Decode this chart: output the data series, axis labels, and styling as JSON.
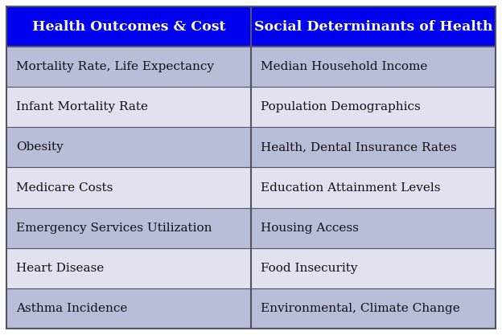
{
  "col1_header": "Health Outcomes & Cost",
  "col2_header": "Social Determinants of Health",
  "col1_items": [
    "Mortality Rate, Life Expectancy",
    "Infant Mortality Rate",
    "Obesity",
    "Medicare Costs",
    "Emergency Services Utilization",
    "Heart Disease",
    "Asthma Incidence"
  ],
  "col2_items": [
    "Median Household Income",
    "Population Demographics",
    "Health, Dental Insurance Rates",
    "Education Attainment Levels",
    "Housing Access",
    "Food Insecurity",
    "Environmental, Climate Change"
  ],
  "header_bg_color": "#0000EE",
  "header_text_color": "#FFFFFF",
  "row_odd_color": "#B8BDD8",
  "row_even_color": "#E0E2EF",
  "border_color": "#555566",
  "text_color": "#111111",
  "header_fontsize": 12.5,
  "cell_fontsize": 11,
  "fig_width": 6.24,
  "fig_height": 4.17
}
